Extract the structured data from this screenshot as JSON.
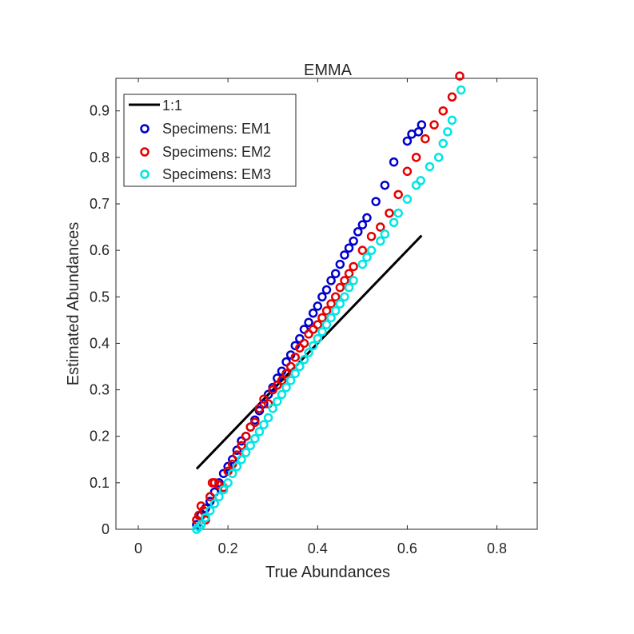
{
  "chart_data": {
    "type": "scatter",
    "title": "EMMA",
    "xlabel": "True Abundances",
    "ylabel": "Estimated Abundances",
    "xlim": [
      -0.05,
      0.89
    ],
    "ylim": [
      0,
      0.97
    ],
    "xticks": [
      0,
      0.2,
      0.4,
      0.6,
      0.8
    ],
    "xtick_labels": [
      "0",
      "0.2",
      "0.4",
      "0.6",
      "0.8"
    ],
    "yticks": [
      0,
      0.1,
      0.2,
      0.3,
      0.4,
      0.5,
      0.6,
      0.7,
      0.8,
      0.9
    ],
    "ytick_labels": [
      "0",
      "0.1",
      "0.2",
      "0.3",
      "0.4",
      "0.5",
      "0.6",
      "0.7",
      "0.8",
      "0.9"
    ],
    "grid": false,
    "legend_position": "top-left",
    "legend": [
      "1:1",
      "Specimens: EM1",
      "Specimens: EM2",
      "Specimens: EM3"
    ],
    "reference_line": {
      "name": "1:1",
      "color": "#000000",
      "x": [
        0.13,
        0.632
      ],
      "y": [
        0.13,
        0.632
      ]
    },
    "series": [
      {
        "name": "Specimens: EM1",
        "color": "#0000cc",
        "x": [
          0.13,
          0.14,
          0.15,
          0.16,
          0.17,
          0.18,
          0.19,
          0.2,
          0.21,
          0.22,
          0.23,
          0.24,
          0.25,
          0.26,
          0.27,
          0.28,
          0.29,
          0.3,
          0.31,
          0.32,
          0.33,
          0.34,
          0.35,
          0.36,
          0.37,
          0.38,
          0.39,
          0.4,
          0.41,
          0.42,
          0.43,
          0.44,
          0.45,
          0.46,
          0.47,
          0.48,
          0.49,
          0.5,
          0.51,
          0.53,
          0.55,
          0.57,
          0.6,
          0.61,
          0.625,
          0.632
        ],
        "y": [
          0.01,
          0.03,
          0.045,
          0.06,
          0.08,
          0.1,
          0.12,
          0.135,
          0.15,
          0.17,
          0.19,
          0.2,
          0.22,
          0.235,
          0.255,
          0.27,
          0.29,
          0.305,
          0.325,
          0.34,
          0.36,
          0.375,
          0.395,
          0.41,
          0.43,
          0.445,
          0.465,
          0.48,
          0.5,
          0.515,
          0.535,
          0.55,
          0.57,
          0.59,
          0.605,
          0.62,
          0.64,
          0.655,
          0.67,
          0.705,
          0.74,
          0.79,
          0.835,
          0.85,
          0.855,
          0.87
        ]
      },
      {
        "name": "Specimens: EM2",
        "color": "#e60000",
        "x": [
          0.13,
          0.135,
          0.14,
          0.145,
          0.15,
          0.16,
          0.165,
          0.17,
          0.18,
          0.19,
          0.2,
          0.21,
          0.22,
          0.23,
          0.24,
          0.25,
          0.26,
          0.27,
          0.28,
          0.29,
          0.3,
          0.31,
          0.32,
          0.33,
          0.34,
          0.35,
          0.36,
          0.37,
          0.38,
          0.39,
          0.4,
          0.41,
          0.42,
          0.43,
          0.44,
          0.45,
          0.46,
          0.47,
          0.48,
          0.5,
          0.52,
          0.54,
          0.56,
          0.58,
          0.6,
          0.62,
          0.64,
          0.66,
          0.68,
          0.7,
          0.717
        ],
        "y": [
          0.02,
          0.03,
          0.05,
          0.04,
          0.02,
          0.07,
          0.1,
          0.1,
          0.095,
          0.09,
          0.125,
          0.14,
          0.16,
          0.18,
          0.2,
          0.22,
          0.23,
          0.26,
          0.28,
          0.27,
          0.3,
          0.31,
          0.32,
          0.335,
          0.35,
          0.37,
          0.39,
          0.4,
          0.42,
          0.43,
          0.44,
          0.455,
          0.47,
          0.485,
          0.5,
          0.52,
          0.535,
          0.55,
          0.565,
          0.6,
          0.63,
          0.65,
          0.68,
          0.72,
          0.77,
          0.8,
          0.84,
          0.87,
          0.9,
          0.93,
          0.975
        ]
      },
      {
        "name": "Specimens: EM3",
        "color": "#00e6e6",
        "x": [
          0.13,
          0.135,
          0.14,
          0.15,
          0.16,
          0.17,
          0.18,
          0.19,
          0.2,
          0.21,
          0.22,
          0.23,
          0.24,
          0.25,
          0.26,
          0.27,
          0.28,
          0.29,
          0.3,
          0.31,
          0.32,
          0.33,
          0.34,
          0.35,
          0.36,
          0.37,
          0.38,
          0.39,
          0.4,
          0.41,
          0.42,
          0.43,
          0.44,
          0.45,
          0.46,
          0.47,
          0.48,
          0.5,
          0.51,
          0.52,
          0.54,
          0.55,
          0.57,
          0.58,
          0.6,
          0.62,
          0.63,
          0.65,
          0.67,
          0.68,
          0.69,
          0.7,
          0.72
        ],
        "y": [
          0.0,
          0.005,
          0.01,
          0.025,
          0.04,
          0.055,
          0.07,
          0.085,
          0.1,
          0.12,
          0.135,
          0.15,
          0.165,
          0.18,
          0.195,
          0.21,
          0.225,
          0.24,
          0.26,
          0.275,
          0.29,
          0.305,
          0.32,
          0.335,
          0.35,
          0.365,
          0.38,
          0.395,
          0.41,
          0.425,
          0.44,
          0.455,
          0.47,
          0.485,
          0.5,
          0.52,
          0.535,
          0.57,
          0.585,
          0.6,
          0.62,
          0.635,
          0.66,
          0.68,
          0.71,
          0.74,
          0.75,
          0.78,
          0.8,
          0.83,
          0.855,
          0.88,
          0.945
        ]
      }
    ]
  }
}
